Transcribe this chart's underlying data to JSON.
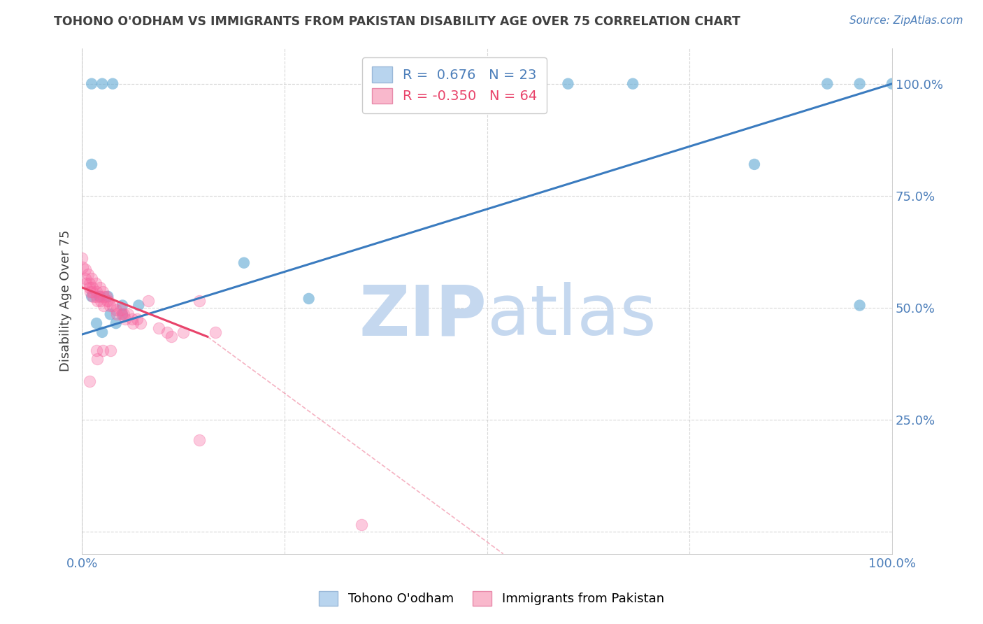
{
  "title": "TOHONO O'ODHAM VS IMMIGRANTS FROM PAKISTAN DISABILITY AGE OVER 75 CORRELATION CHART",
  "source": "Source: ZipAtlas.com",
  "ylabel": "Disability Age Over 75",
  "xlim": [
    0.0,
    1.0
  ],
  "ylim": [
    -0.05,
    1.08
  ],
  "xtick_positions": [
    0.0,
    0.25,
    0.5,
    0.75,
    1.0
  ],
  "ytick_positions": [
    0.0,
    0.25,
    0.5,
    0.75,
    1.0
  ],
  "blue_scatter": [
    [
      0.012,
      1.0
    ],
    [
      0.025,
      1.0
    ],
    [
      0.038,
      1.0
    ],
    [
      0.012,
      0.82
    ],
    [
      0.6,
      1.0
    ],
    [
      0.68,
      1.0
    ],
    [
      0.83,
      0.82
    ],
    [
      0.92,
      1.0
    ],
    [
      0.96,
      1.0
    ],
    [
      1.0,
      1.0
    ],
    [
      0.2,
      0.6
    ],
    [
      0.28,
      0.52
    ],
    [
      0.012,
      0.525
    ],
    [
      0.022,
      0.525
    ],
    [
      0.032,
      0.525
    ],
    [
      0.05,
      0.505
    ],
    [
      0.07,
      0.505
    ],
    [
      0.035,
      0.485
    ],
    [
      0.05,
      0.485
    ],
    [
      0.018,
      0.465
    ],
    [
      0.042,
      0.465
    ],
    [
      0.025,
      0.445
    ],
    [
      0.96,
      0.505
    ]
  ],
  "pink_scatter": [
    [
      0.0,
      0.61
    ],
    [
      0.001,
      0.59
    ],
    [
      0.004,
      0.585
    ],
    [
      0.004,
      0.565
    ],
    [
      0.005,
      0.555
    ],
    [
      0.008,
      0.575
    ],
    [
      0.009,
      0.555
    ],
    [
      0.009,
      0.545
    ],
    [
      0.01,
      0.535
    ],
    [
      0.012,
      0.565
    ],
    [
      0.013,
      0.545
    ],
    [
      0.013,
      0.535
    ],
    [
      0.014,
      0.525
    ],
    [
      0.017,
      0.555
    ],
    [
      0.018,
      0.535
    ],
    [
      0.018,
      0.525
    ],
    [
      0.019,
      0.515
    ],
    [
      0.022,
      0.545
    ],
    [
      0.022,
      0.525
    ],
    [
      0.023,
      0.515
    ],
    [
      0.026,
      0.535
    ],
    [
      0.027,
      0.525
    ],
    [
      0.027,
      0.505
    ],
    [
      0.03,
      0.525
    ],
    [
      0.031,
      0.515
    ],
    [
      0.033,
      0.515
    ],
    [
      0.034,
      0.505
    ],
    [
      0.038,
      0.505
    ],
    [
      0.042,
      0.495
    ],
    [
      0.043,
      0.485
    ],
    [
      0.048,
      0.495
    ],
    [
      0.049,
      0.485
    ],
    [
      0.052,
      0.485
    ],
    [
      0.053,
      0.475
    ],
    [
      0.057,
      0.485
    ],
    [
      0.062,
      0.475
    ],
    [
      0.063,
      0.465
    ],
    [
      0.068,
      0.475
    ],
    [
      0.072,
      0.465
    ],
    [
      0.082,
      0.515
    ],
    [
      0.095,
      0.455
    ],
    [
      0.105,
      0.445
    ],
    [
      0.11,
      0.435
    ],
    [
      0.125,
      0.445
    ],
    [
      0.145,
      0.515
    ],
    [
      0.165,
      0.445
    ],
    [
      0.018,
      0.405
    ],
    [
      0.026,
      0.405
    ],
    [
      0.035,
      0.405
    ],
    [
      0.019,
      0.385
    ],
    [
      0.009,
      0.335
    ],
    [
      0.145,
      0.205
    ],
    [
      0.345,
      0.015
    ]
  ],
  "blue_line": {
    "x0": 0.0,
    "y0": 0.44,
    "x1": 1.0,
    "y1": 1.0
  },
  "pink_line_solid": {
    "x0": 0.0,
    "y0": 0.545,
    "x1": 0.155,
    "y1": 0.435
  },
  "pink_line_dashed": {
    "x0": 0.155,
    "y0": 0.435,
    "x1": 0.52,
    "y1": -0.05
  },
  "blue_color": "#6baed6",
  "pink_color": "#f768a1",
  "watermark_zip": "ZIP",
  "watermark_atlas": "atlas",
  "background_color": "#ffffff",
  "grid_color": "#c8c8c8",
  "title_color": "#404040",
  "axis_label_color": "#404040",
  "tick_label_color": "#4d7fba",
  "source_color": "#4d7fba"
}
